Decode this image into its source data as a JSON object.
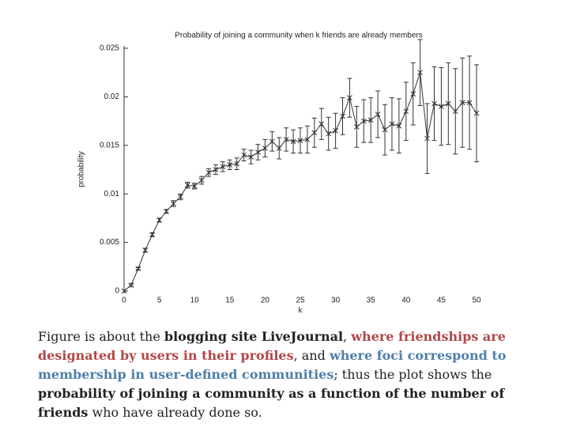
{
  "chart_data": {
    "type": "line",
    "title": "Probability of joining a community when k friends are already members",
    "xlabel": "k",
    "ylabel": "probability",
    "x": [
      0,
      1,
      2,
      3,
      4,
      5,
      6,
      7,
      8,
      9,
      10,
      11,
      12,
      13,
      14,
      15,
      16,
      17,
      18,
      19,
      20,
      21,
      22,
      23,
      24,
      25,
      26,
      27,
      28,
      29,
      30,
      31,
      32,
      33,
      34,
      35,
      36,
      37,
      38,
      39,
      40,
      41,
      42,
      43,
      44,
      45,
      46,
      47,
      48,
      49,
      50
    ],
    "series": [
      {
        "color": "#333333",
        "values": [
          0,
          0.0006,
          0.0023,
          0.0042,
          0.0058,
          0.0073,
          0.0082,
          0.009,
          0.0097,
          0.0109,
          0.0108,
          0.0114,
          0.0122,
          0.0125,
          0.0128,
          0.013,
          0.0131,
          0.014,
          0.0138,
          0.0143,
          0.0147,
          0.0154,
          0.0147,
          0.0156,
          0.0154,
          0.0155,
          0.0156,
          0.0163,
          0.0172,
          0.0162,
          0.0165,
          0.018,
          0.0199,
          0.0169,
          0.0175,
          0.0176,
          0.0182,
          0.0166,
          0.0172,
          0.017,
          0.0185,
          0.0203,
          0.0225,
          0.0157,
          0.0193,
          0.019,
          0.0193,
          0.0185,
          0.0194,
          0.0194,
          0.0183
        ],
        "errors": [
          0,
          0.0001,
          0.0001,
          0.0002,
          0.0002,
          0.0002,
          0.0002,
          0.0003,
          0.0003,
          0.0003,
          0.0003,
          0.0004,
          0.0004,
          0.0005,
          0.0005,
          0.0005,
          0.0006,
          0.0006,
          0.0007,
          0.0008,
          0.0009,
          0.001,
          0.0011,
          0.0012,
          0.0012,
          0.0013,
          0.0014,
          0.0015,
          0.0016,
          0.0017,
          0.0018,
          0.0019,
          0.002,
          0.0021,
          0.0022,
          0.0023,
          0.0024,
          0.0026,
          0.0027,
          0.0028,
          0.003,
          0.0032,
          0.0034,
          0.0036,
          0.0038,
          0.004,
          0.0042,
          0.0044,
          0.0046,
          0.0048,
          0.005
        ]
      }
    ],
    "xlim": [
      0,
      50
    ],
    "ylim": [
      0,
      0.025
    ],
    "xticks": [
      0,
      5,
      10,
      15,
      20,
      25,
      30,
      35,
      40,
      45,
      50
    ],
    "yticks": [
      0,
      0.005,
      0.01,
      0.015,
      0.02,
      0.025
    ]
  },
  "caption": {
    "parts": [
      {
        "text": "Figure is about the "
      },
      {
        "text": "blogging site LiveJournal",
        "bold": true
      },
      {
        "text": ", "
      },
      {
        "text": "where friendships are designated by users in their profiles",
        "bold": true,
        "color": "#b04848"
      },
      {
        "text": ", and "
      },
      {
        "text": "where foci correspond to membership in user-defined communities",
        "bold": true,
        "color": "#4f7fa8"
      },
      {
        "text": "; thus the plot shows the "
      },
      {
        "text": "probability of joining a community as a function of the number of friends",
        "bold": true
      },
      {
        "text": " who have already done so."
      }
    ]
  }
}
